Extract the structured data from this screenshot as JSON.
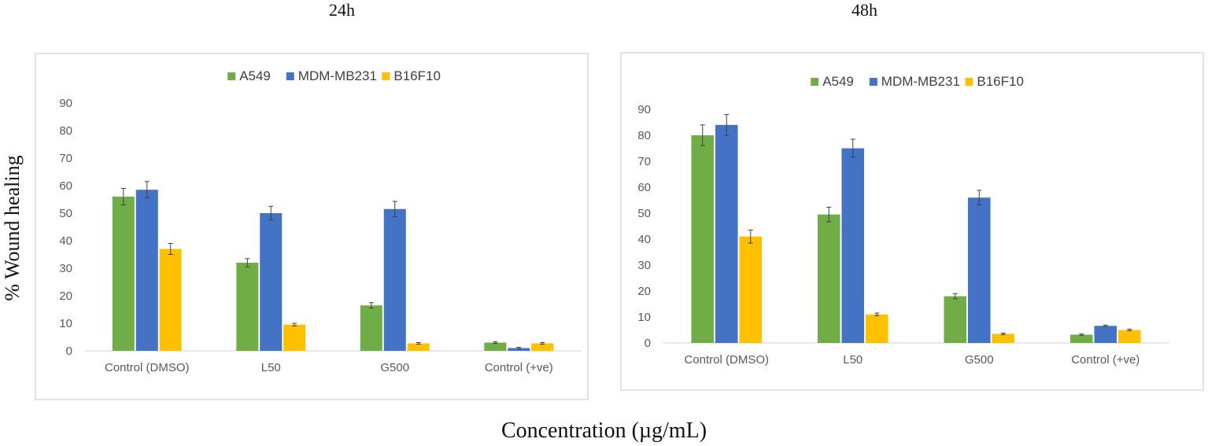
{
  "figure": {
    "ylabel": "% Wound healing",
    "xlabel": "Concentration (µg/mL)"
  },
  "colors": {
    "A549": "#70AD47",
    "MDM-MB231": "#4472C4",
    "B16F10": "#FFC000",
    "axis": "#D9D9D9",
    "frame": "#D0D0D0",
    "tick_text": "#595959",
    "error_bar": "#404040"
  },
  "chart_data": [
    {
      "type": "bar",
      "title": "24h",
      "categories": [
        "Control (DMSO)",
        "L50",
        "G500",
        "Control (+ve)"
      ],
      "series": [
        {
          "name": "A549",
          "values": [
            56,
            32,
            16.5,
            3
          ],
          "errors": [
            3,
            1.5,
            1,
            0.3
          ]
        },
        {
          "name": "MDM-MB231",
          "values": [
            58.5,
            50,
            51.5,
            1
          ],
          "errors": [
            3,
            2.5,
            2.8,
            0.3
          ]
        },
        {
          "name": "B16F10",
          "values": [
            37,
            9.5,
            2.7,
            2.7
          ],
          "errors": [
            2,
            0.5,
            0.3,
            0.3
          ]
        }
      ],
      "ylim": [
        0,
        90
      ],
      "yticks": [
        0,
        10,
        20,
        30,
        40,
        50,
        60,
        70,
        80,
        90
      ],
      "legend": "top-center"
    },
    {
      "type": "bar",
      "title": "48h",
      "categories": [
        "Control (DMSO)",
        "L50",
        "G500",
        "Control (+ve)"
      ],
      "series": [
        {
          "name": "A549",
          "values": [
            80,
            49.5,
            18,
            3.2
          ],
          "errors": [
            4,
            2.8,
            1,
            0.3
          ]
        },
        {
          "name": "MDM-MB231",
          "values": [
            84,
            75,
            56,
            6.6
          ],
          "errors": [
            4,
            3.5,
            2.8,
            0.3
          ]
        },
        {
          "name": "B16F10",
          "values": [
            41,
            11,
            3.5,
            5
          ],
          "errors": [
            2.5,
            0.5,
            0.3,
            0.3
          ]
        }
      ],
      "ylim": [
        0,
        90
      ],
      "yticks": [
        0,
        10,
        20,
        30,
        40,
        50,
        60,
        70,
        80,
        90
      ],
      "legend": "top-center"
    }
  ]
}
